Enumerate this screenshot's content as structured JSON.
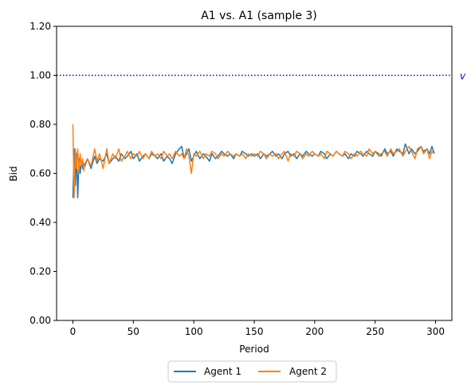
{
  "chart_data": {
    "type": "line",
    "title": "A1 vs. A1 (sample 3)",
    "xlabel": "Period",
    "ylabel": "Bid",
    "xlim": [
      -13.5,
      313.5
    ],
    "ylim": [
      0.0,
      1.2
    ],
    "xticks": [
      0,
      50,
      100,
      150,
      200,
      250,
      300
    ],
    "yticks": [
      0.0,
      0.2,
      0.4,
      0.6,
      0.8,
      1.0,
      1.2
    ],
    "ytick_labels": [
      "0.00",
      "0.20",
      "0.40",
      "0.60",
      "0.80",
      "1.00",
      "1.20"
    ],
    "grid": false,
    "legend_placement": "bottom-center",
    "reference_line": {
      "y": 1.0,
      "label": "v",
      "color": "#0000cc",
      "style": "dotted"
    },
    "series": [
      {
        "name": "Agent 1",
        "color": "#1f77b4",
        "x": [
          0,
          1,
          2,
          3,
          4,
          5,
          6,
          7,
          8,
          9,
          10,
          12,
          15,
          18,
          20,
          22,
          25,
          28,
          30,
          33,
          35,
          38,
          40,
          43,
          45,
          48,
          50,
          53,
          55,
          58,
          60,
          63,
          65,
          68,
          70,
          73,
          75,
          78,
          80,
          82,
          85,
          88,
          90,
          92,
          94,
          96,
          98,
          100,
          102,
          105,
          108,
          110,
          113,
          115,
          118,
          120,
          123,
          125,
          128,
          130,
          133,
          135,
          138,
          140,
          143,
          145,
          148,
          150,
          153,
          155,
          158,
          160,
          163,
          165,
          168,
          170,
          173,
          175,
          178,
          180,
          183,
          185,
          188,
          190,
          193,
          195,
          198,
          200,
          203,
          205,
          208,
          210,
          213,
          215,
          218,
          220,
          223,
          225,
          228,
          230,
          233,
          235,
          238,
          240,
          243,
          245,
          248,
          250,
          253,
          255,
          258,
          260,
          263,
          265,
          268,
          270,
          273,
          275,
          278,
          280,
          283,
          285,
          288,
          290,
          293,
          295,
          297,
          299
        ],
        "y": [
          0.5,
          0.7,
          0.55,
          0.68,
          0.5,
          0.66,
          0.6,
          0.65,
          0.62,
          0.64,
          0.63,
          0.66,
          0.62,
          0.67,
          0.64,
          0.66,
          0.65,
          0.68,
          0.64,
          0.66,
          0.67,
          0.65,
          0.68,
          0.66,
          0.67,
          0.69,
          0.66,
          0.68,
          0.65,
          0.67,
          0.68,
          0.66,
          0.68,
          0.67,
          0.66,
          0.68,
          0.65,
          0.67,
          0.66,
          0.64,
          0.68,
          0.7,
          0.71,
          0.66,
          0.68,
          0.7,
          0.65,
          0.67,
          0.69,
          0.66,
          0.68,
          0.67,
          0.65,
          0.68,
          0.66,
          0.67,
          0.69,
          0.68,
          0.67,
          0.68,
          0.66,
          0.68,
          0.67,
          0.69,
          0.68,
          0.67,
          0.68,
          0.67,
          0.68,
          0.66,
          0.68,
          0.67,
          0.68,
          0.69,
          0.67,
          0.68,
          0.66,
          0.68,
          0.69,
          0.67,
          0.68,
          0.66,
          0.68,
          0.67,
          0.69,
          0.68,
          0.67,
          0.68,
          0.67,
          0.69,
          0.68,
          0.66,
          0.68,
          0.67,
          0.69,
          0.68,
          0.67,
          0.68,
          0.66,
          0.68,
          0.67,
          0.69,
          0.68,
          0.67,
          0.69,
          0.68,
          0.67,
          0.69,
          0.68,
          0.67,
          0.7,
          0.68,
          0.69,
          0.67,
          0.7,
          0.69,
          0.68,
          0.72,
          0.68,
          0.7,
          0.68,
          0.69,
          0.71,
          0.69,
          0.7,
          0.68,
          0.71,
          0.68
        ]
      },
      {
        "name": "Agent 2",
        "color": "#ff7f0e",
        "x": [
          0,
          1,
          2,
          3,
          4,
          5,
          6,
          7,
          8,
          9,
          10,
          12,
          15,
          18,
          20,
          22,
          25,
          28,
          30,
          33,
          35,
          38,
          40,
          43,
          45,
          48,
          50,
          53,
          55,
          58,
          60,
          63,
          65,
          68,
          70,
          73,
          75,
          78,
          80,
          82,
          85,
          88,
          90,
          92,
          94,
          96,
          98,
          100,
          102,
          105,
          108,
          110,
          113,
          115,
          118,
          120,
          123,
          125,
          128,
          130,
          133,
          135,
          138,
          140,
          143,
          145,
          148,
          150,
          153,
          155,
          158,
          160,
          163,
          165,
          168,
          170,
          173,
          175,
          178,
          180,
          183,
          185,
          188,
          190,
          193,
          195,
          198,
          200,
          203,
          205,
          208,
          210,
          213,
          215,
          218,
          220,
          223,
          225,
          228,
          230,
          233,
          235,
          238,
          240,
          243,
          245,
          248,
          250,
          253,
          255,
          258,
          260,
          263,
          265,
          268,
          270,
          273,
          275,
          278,
          280,
          283,
          285,
          288,
          290,
          293,
          295,
          297,
          299
        ],
        "y": [
          0.8,
          0.5,
          0.7,
          0.62,
          0.7,
          0.6,
          0.68,
          0.63,
          0.66,
          0.61,
          0.64,
          0.66,
          0.63,
          0.7,
          0.65,
          0.68,
          0.62,
          0.7,
          0.64,
          0.68,
          0.66,
          0.7,
          0.65,
          0.67,
          0.69,
          0.66,
          0.68,
          0.67,
          0.69,
          0.66,
          0.68,
          0.66,
          0.69,
          0.67,
          0.68,
          0.66,
          0.69,
          0.67,
          0.68,
          0.66,
          0.69,
          0.67,
          0.68,
          0.66,
          0.7,
          0.67,
          0.6,
          0.68,
          0.67,
          0.69,
          0.66,
          0.68,
          0.67,
          0.69,
          0.68,
          0.66,
          0.68,
          0.67,
          0.69,
          0.68,
          0.67,
          0.68,
          0.67,
          0.68,
          0.66,
          0.68,
          0.67,
          0.68,
          0.67,
          0.69,
          0.68,
          0.66,
          0.68,
          0.67,
          0.68,
          0.66,
          0.68,
          0.69,
          0.65,
          0.68,
          0.67,
          0.69,
          0.68,
          0.66,
          0.68,
          0.67,
          0.69,
          0.68,
          0.67,
          0.68,
          0.66,
          0.69,
          0.68,
          0.67,
          0.69,
          0.68,
          0.67,
          0.69,
          0.68,
          0.66,
          0.68,
          0.67,
          0.69,
          0.68,
          0.67,
          0.7,
          0.68,
          0.69,
          0.67,
          0.68,
          0.69,
          0.67,
          0.7,
          0.68,
          0.69,
          0.7,
          0.67,
          0.69,
          0.71,
          0.69,
          0.66,
          0.7,
          0.71,
          0.68,
          0.7,
          0.66,
          0.69,
          0.68
        ]
      }
    ]
  }
}
